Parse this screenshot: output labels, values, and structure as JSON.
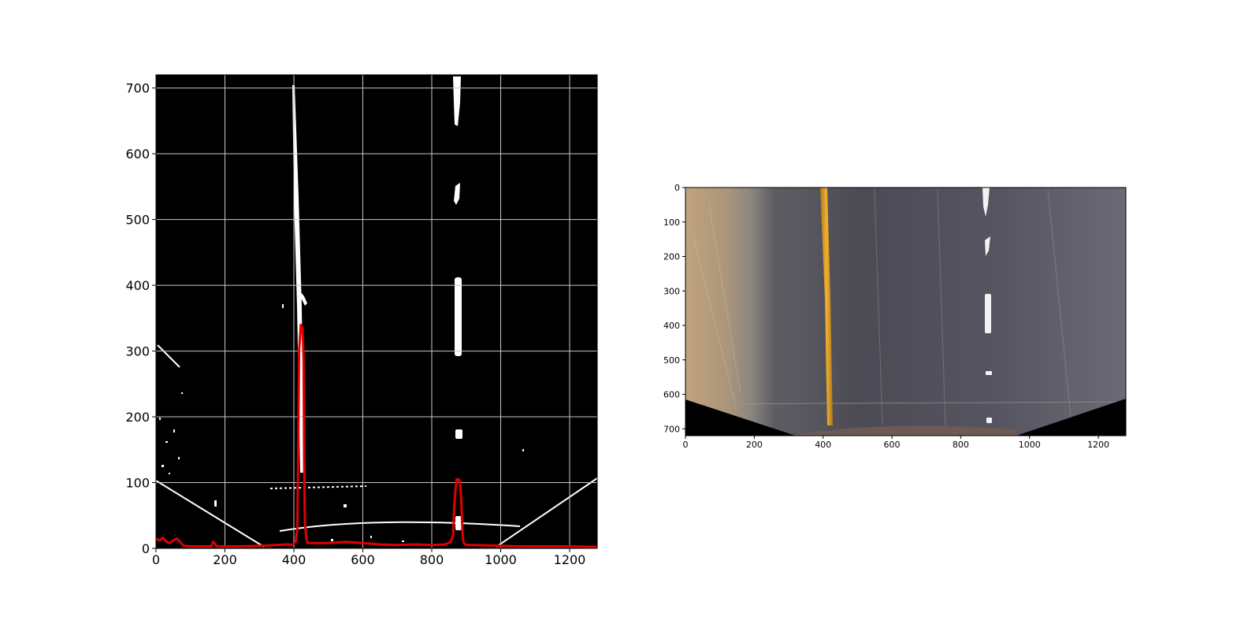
{
  "colors": {
    "histogram_line": "#e00000",
    "binary_background": "#000000",
    "binary_pixels": "#ffffff",
    "grid": "#c8c8c8",
    "road_asphalt": "#4b4b55",
    "road_shoulder": "#a08c6e",
    "lane_line_left": "#e0a020",
    "lane_line_right": "#f2f2f2"
  },
  "chart_data": [
    {
      "type": "line",
      "subtype": "lane-pixel histogram over warped binary image",
      "xlim": [
        0,
        1280
      ],
      "ylim": [
        0,
        720
      ],
      "grid": true,
      "xticks": [
        0,
        200,
        400,
        600,
        800,
        1000,
        1200
      ],
      "yticks": [
        0,
        100,
        200,
        300,
        400,
        500,
        600,
        700
      ],
      "series": [
        {
          "x": [
            0,
            10,
            20,
            30,
            40,
            50,
            60,
            70,
            80,
            100,
            160,
            165,
            170,
            175,
            180,
            250,
            300,
            350,
            380,
            395,
            405,
            410,
            412,
            415,
            420,
            425,
            428,
            430,
            432,
            436,
            440,
            460,
            500,
            550,
            600,
            650,
            700,
            750,
            800,
            840,
            855,
            862,
            865,
            868,
            872,
            878,
            882,
            885,
            888,
            890,
            893,
            897,
            902,
            920,
            1000,
            1050,
            1100,
            1200,
            1280
          ],
          "y": [
            15,
            12,
            16,
            10,
            8,
            12,
            15,
            10,
            4,
            3,
            3,
            10,
            8,
            3,
            3,
            3,
            4,
            5,
            6,
            5,
            10,
            30,
            120,
            300,
            340,
            335,
            290,
            120,
            40,
            15,
            8,
            8,
            8,
            10,
            8,
            6,
            5,
            6,
            5,
            6,
            10,
            20,
            60,
            85,
            105,
            105,
            100,
            80,
            40,
            15,
            8,
            6,
            5,
            5,
            4,
            3,
            3,
            3,
            2
          ]
        }
      ]
    },
    {
      "type": "image",
      "subtype": "perspective-warped road image",
      "xlim": [
        0,
        1280
      ],
      "ylim": [
        720,
        0
      ],
      "grid": false,
      "xticks": [
        0,
        200,
        400,
        600,
        800,
        1000,
        1200
      ],
      "yticks": [
        0,
        100,
        200,
        300,
        400,
        500,
        600,
        700
      ]
    }
  ]
}
